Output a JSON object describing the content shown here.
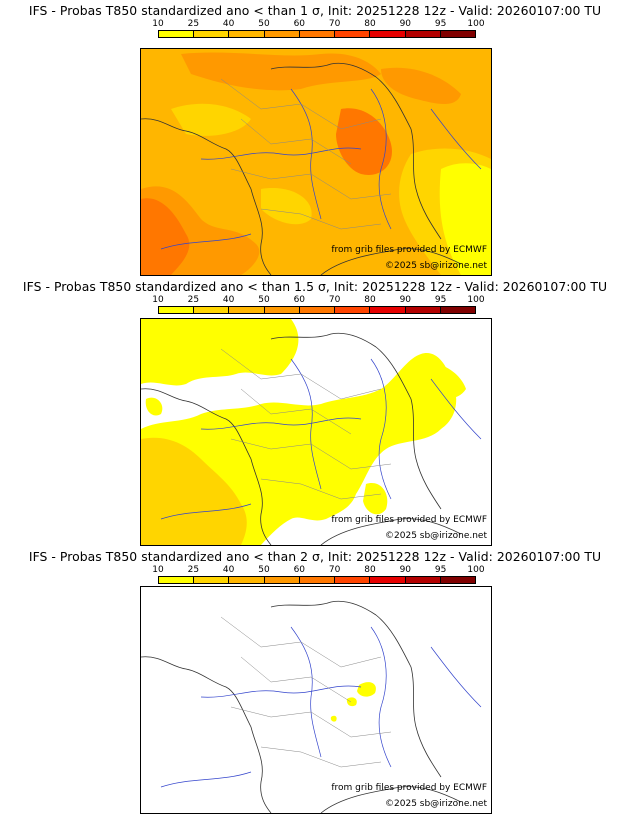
{
  "colorbar": {
    "ticks": [
      "10",
      "25",
      "40",
      "50",
      "60",
      "70",
      "80",
      "90",
      "95",
      "100"
    ],
    "colors": [
      "#ffff00",
      "#ffd500",
      "#ffb600",
      "#ff9900",
      "#ff7700",
      "#ff4400",
      "#e60000",
      "#b30000",
      "#800000"
    ]
  },
  "panels": [
    {
      "title": "IFS - Probas T850  standardized ano < than 1 σ, Init: 20251228 12z - Valid: 20260107:00 TU",
      "credit": "from grib files provided by ECMWF",
      "copyright": "©2025 sb@irizone.net"
    },
    {
      "title": "IFS - Probas T850  standardized ano < than 1.5 σ, Init: 20251228 12z - Valid: 20260107:00 TU",
      "credit": "from grib files provided by ECMWF",
      "copyright": "©2025 sb@irizone.net"
    },
    {
      "title": "IFS - Probas T850  standardized ano < than 2 σ, Init: 20251228 12z - Valid: 20260107:00 TU",
      "credit": "from grib files provided by ECMWF",
      "copyright": "©2025 sb@irizone.net"
    }
  ]
}
